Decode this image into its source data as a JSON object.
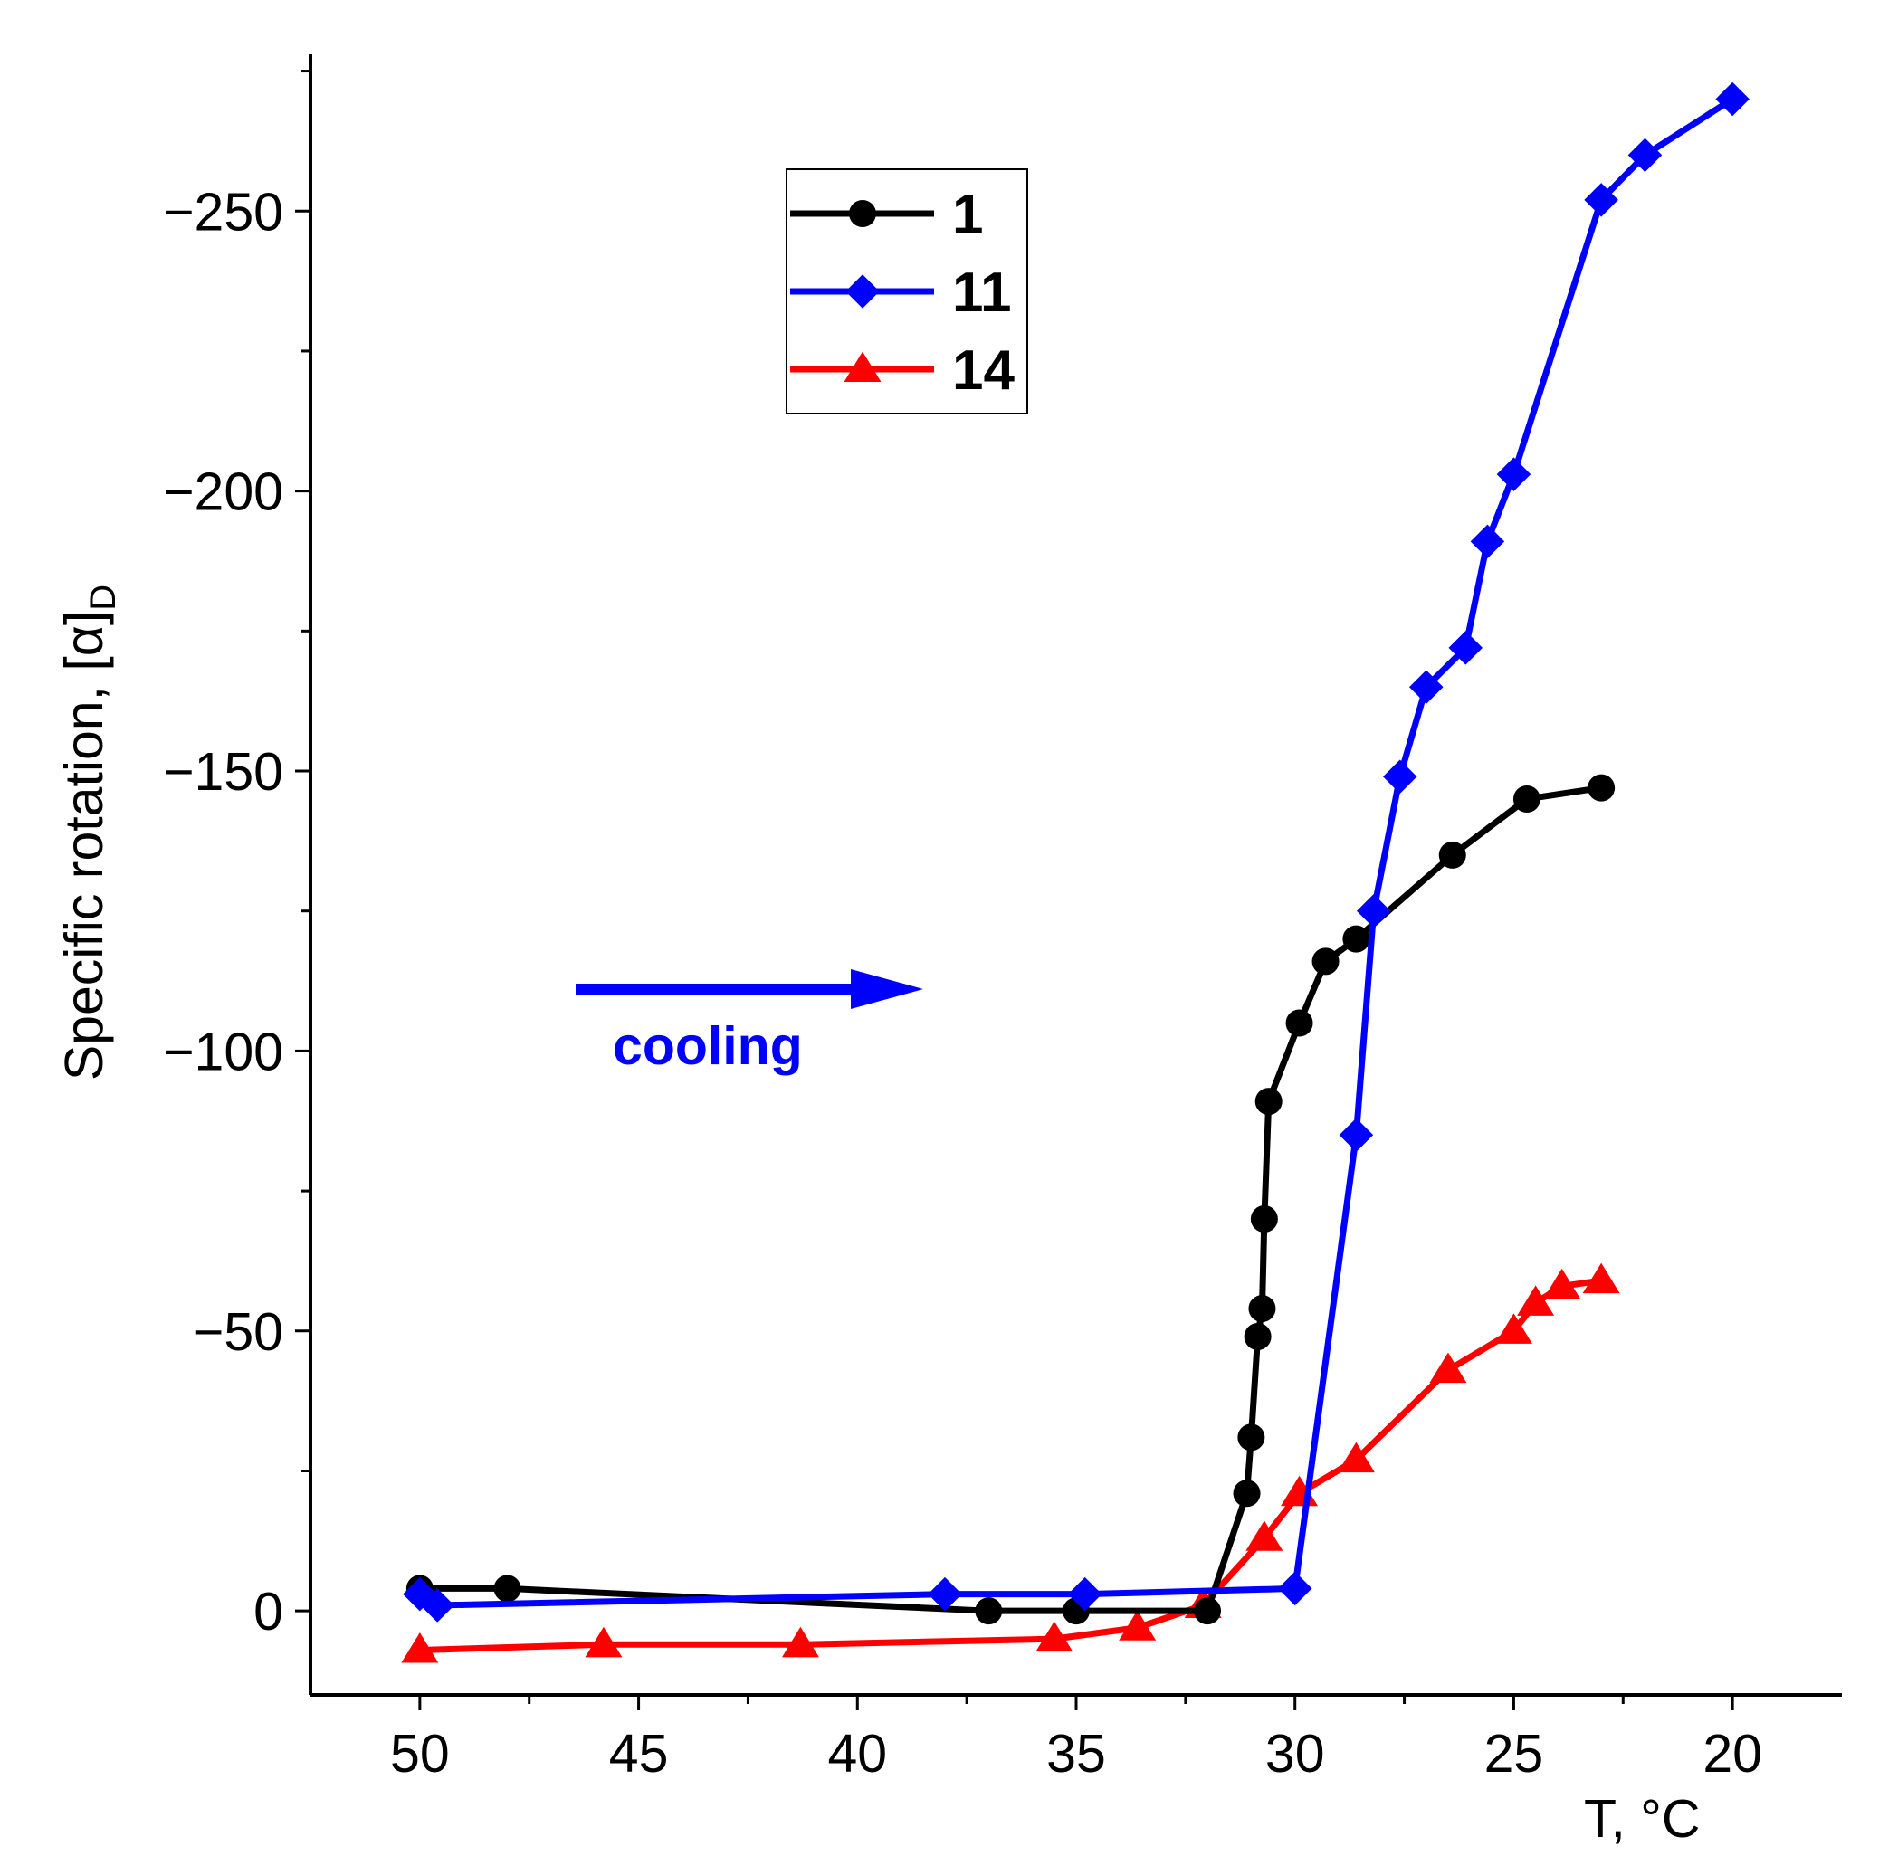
{
  "chart_data": {
    "type": "line",
    "title": "",
    "xlabel": "T, °C",
    "ylabel": "Specific rotation, [α]",
    "ylabel_subscript": "D",
    "xlim": [
      52.5,
      17.5
    ],
    "ylim": [
      15,
      -278
    ],
    "x_ticks": [
      50,
      45,
      40,
      35,
      30,
      25,
      20
    ],
    "y_ticks": [
      0,
      -50,
      -100,
      -150,
      -200,
      -250
    ],
    "y_tick_labels": [
      "0",
      "−50",
      "−100",
      "−150",
      "−200",
      "−250"
    ],
    "legend_position": "top-center",
    "series": [
      {
        "name": "1",
        "color": "#000000",
        "marker": "circle",
        "x": [
          50,
          48,
          37,
          35,
          32,
          31.1,
          31,
          30.85,
          30.75,
          30.7,
          30.6,
          29.9,
          29.3,
          28.6,
          26.4,
          24.7,
          23
        ],
        "y": [
          -4,
          -4,
          0,
          0,
          0,
          -21,
          -31,
          -49,
          -54,
          -70,
          -91,
          -105,
          -116,
          -120,
          -135,
          -145,
          -147
        ]
      },
      {
        "name": "11",
        "color": "#0000ff",
        "marker": "diamond",
        "x": [
          50,
          49.6,
          38,
          34.8,
          30,
          28.6,
          28.2,
          27.6,
          27,
          26.1,
          25.6,
          25,
          23,
          22,
          20
        ],
        "y": [
          -3,
          -1,
          -3,
          -3,
          -4,
          -85,
          -125,
          -149,
          -165,
          -172,
          -191,
          -203,
          -252,
          -260,
          -270
        ]
      },
      {
        "name": "14",
        "color": "#ff0000",
        "marker": "triangle",
        "x": [
          50,
          45.8,
          41.3,
          35.5,
          33.6,
          32.1,
          30.7,
          29.9,
          28.6,
          26.5,
          25,
          24.5,
          23.9,
          23
        ],
        "y": [
          7,
          6,
          6,
          5,
          3,
          -1,
          -13,
          -21,
          -27,
          -43,
          -50,
          -55,
          -58,
          -59
        ]
      }
    ],
    "annotations": [
      {
        "text": "cooling",
        "color": "#0000ff",
        "arrow": "right"
      }
    ]
  }
}
